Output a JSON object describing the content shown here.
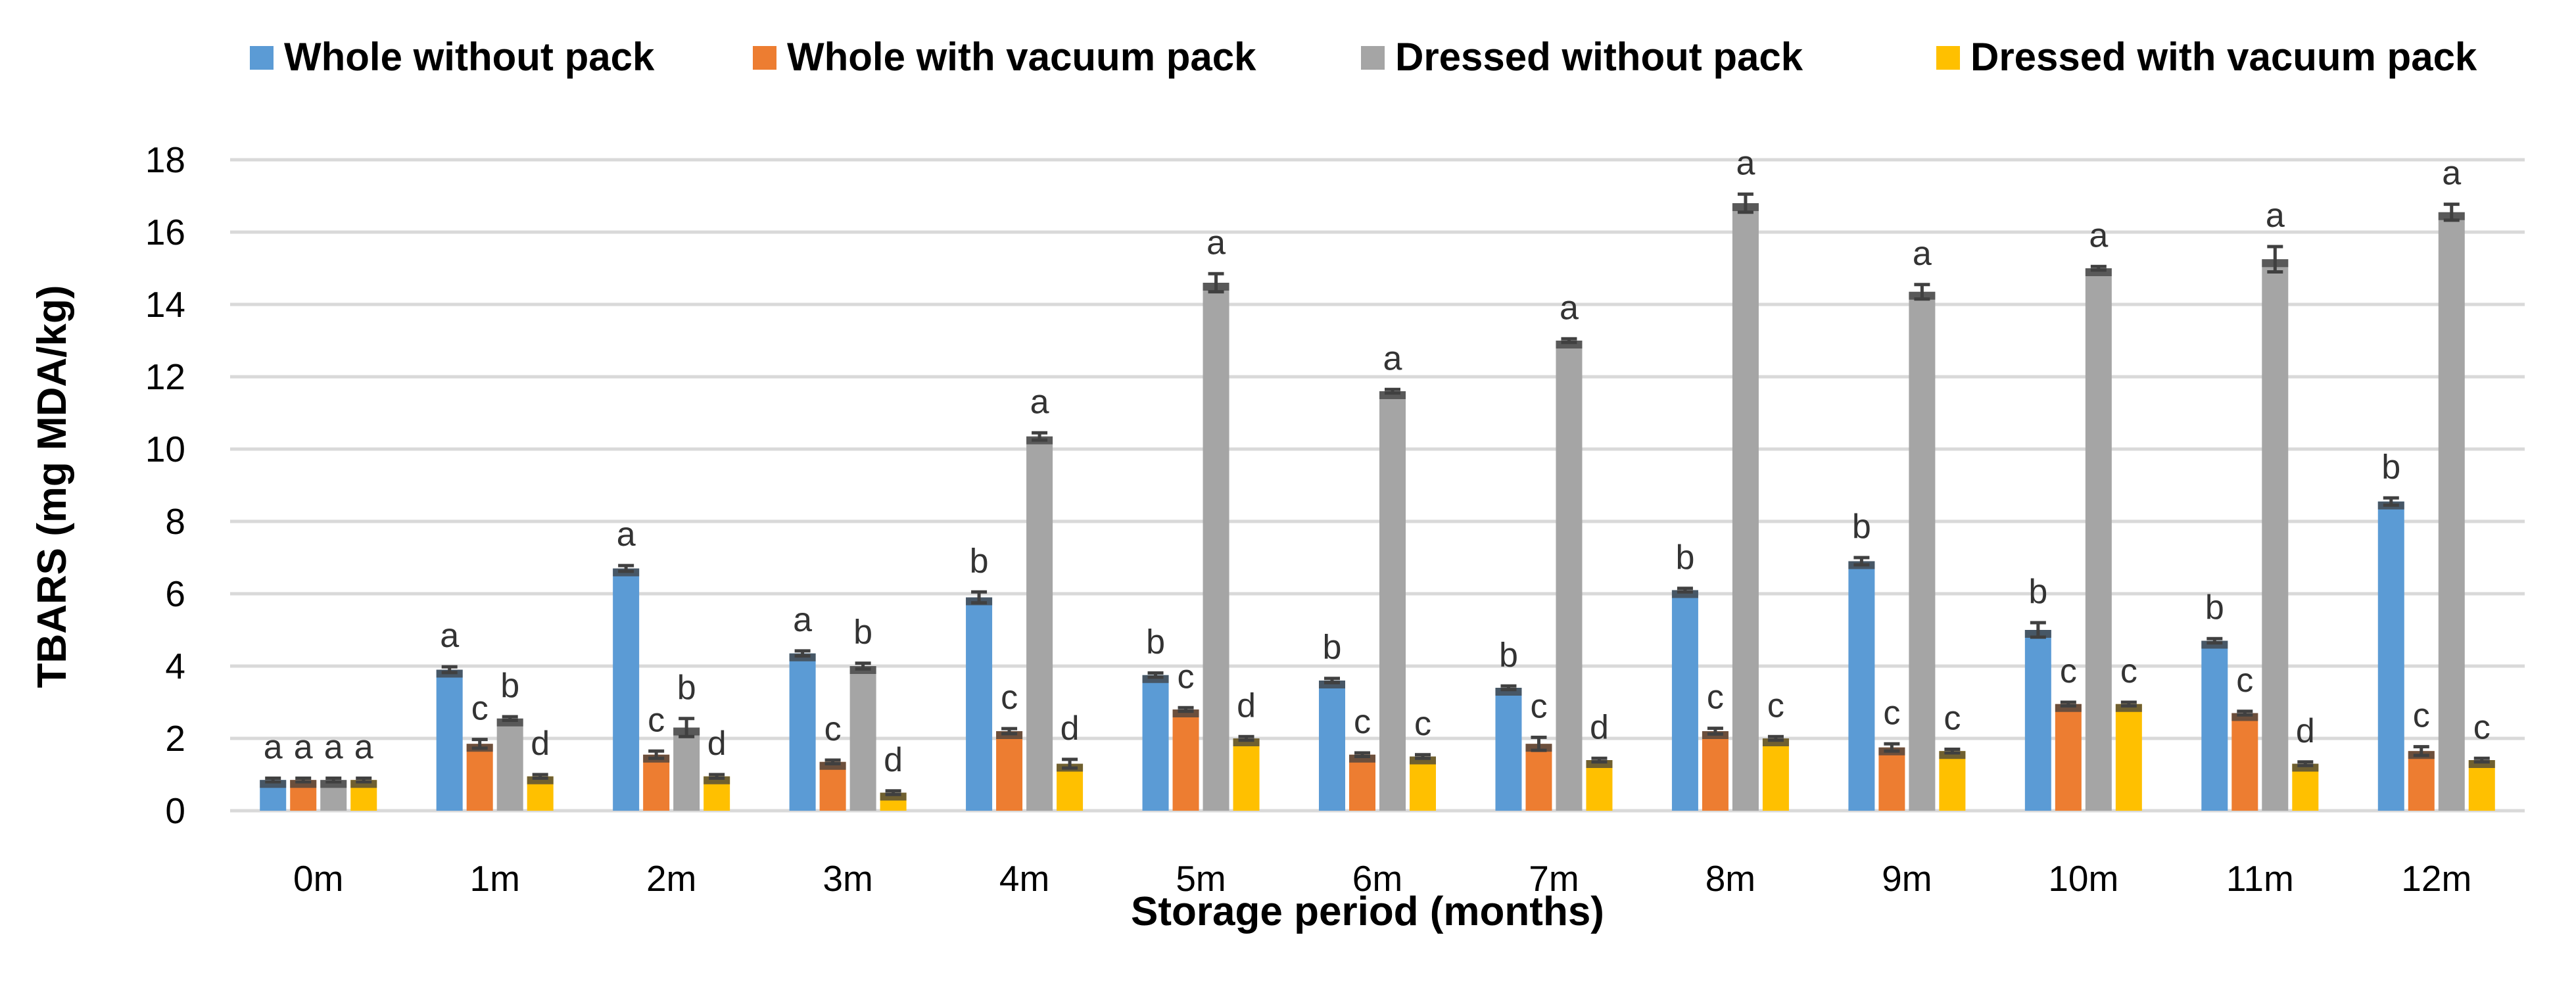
{
  "chart_data": {
    "type": "bar",
    "title": "",
    "xlabel": "Storage period (months)",
    "ylabel": "TBARS (mg MDA/kg)",
    "ylim": [
      0,
      18
    ],
    "yticks": [
      0,
      2,
      4,
      6,
      8,
      10,
      12,
      14,
      16,
      18
    ],
    "grid": true,
    "legend": "top",
    "categories": [
      "0m",
      "1m",
      "2m",
      "3m",
      "4m",
      "5m",
      "6m",
      "7m",
      "8m",
      "9m",
      "10m",
      "11m",
      "12m"
    ],
    "series": [
      {
        "name": "Whole without pack",
        "color": "#5B9BD5",
        "values": [
          0.85,
          3.9,
          6.7,
          4.35,
          5.9,
          3.75,
          3.6,
          3.4,
          6.1,
          6.9,
          5.0,
          4.7,
          8.55
        ],
        "errors": [
          0.05,
          0.08,
          0.08,
          0.07,
          0.15,
          0.06,
          0.06,
          0.05,
          0.05,
          0.1,
          0.2,
          0.06,
          0.1
        ],
        "labels": [
          "a",
          "a",
          "a",
          "a",
          "b",
          "b",
          "b",
          "b",
          "b",
          "b",
          "b",
          "b",
          "b"
        ]
      },
      {
        "name": "Whole with vacuum pack",
        "color": "#ED7D31",
        "values": [
          0.85,
          1.85,
          1.55,
          1.35,
          2.2,
          2.8,
          1.55,
          1.85,
          2.2,
          1.75,
          2.95,
          2.7,
          1.65
        ],
        "errors": [
          0.05,
          0.12,
          0.1,
          0.05,
          0.07,
          0.05,
          0.05,
          0.18,
          0.08,
          0.1,
          0.05,
          0.05,
          0.12
        ],
        "labels": [
          "a",
          "c",
          "c",
          "c",
          "c",
          "c",
          "c",
          "c",
          "c",
          "c",
          "c",
          "c",
          "c"
        ]
      },
      {
        "name": "Dressed without pack",
        "color": "#A5A5A5",
        "values": [
          0.85,
          2.55,
          2.3,
          4.0,
          10.35,
          14.6,
          11.6,
          13.0,
          16.8,
          14.35,
          15.0,
          15.25,
          16.55
        ],
        "errors": [
          0.05,
          0.05,
          0.25,
          0.08,
          0.1,
          0.25,
          0.05,
          0.05,
          0.25,
          0.2,
          0.05,
          0.35,
          0.22
        ],
        "labels": [
          "a",
          "b",
          "b",
          "b",
          "a",
          "a",
          "a",
          "a",
          "a",
          "a",
          "a",
          "a",
          "a"
        ]
      },
      {
        "name": "Dressed with vacuum pack",
        "color": "#FFC000",
        "values": [
          0.85,
          0.95,
          0.95,
          0.5,
          1.3,
          2.0,
          1.5,
          1.4,
          2.0,
          1.65,
          2.95,
          1.3,
          1.4
        ],
        "errors": [
          0.05,
          0.05,
          0.05,
          0.05,
          0.12,
          0.05,
          0.05,
          0.05,
          0.05,
          0.05,
          0.05,
          0.05,
          0.05
        ],
        "labels": [
          "a",
          "d",
          "d",
          "d",
          "d",
          "d",
          "c",
          "d",
          "c",
          "c",
          "c",
          "d",
          "c"
        ]
      }
    ]
  }
}
